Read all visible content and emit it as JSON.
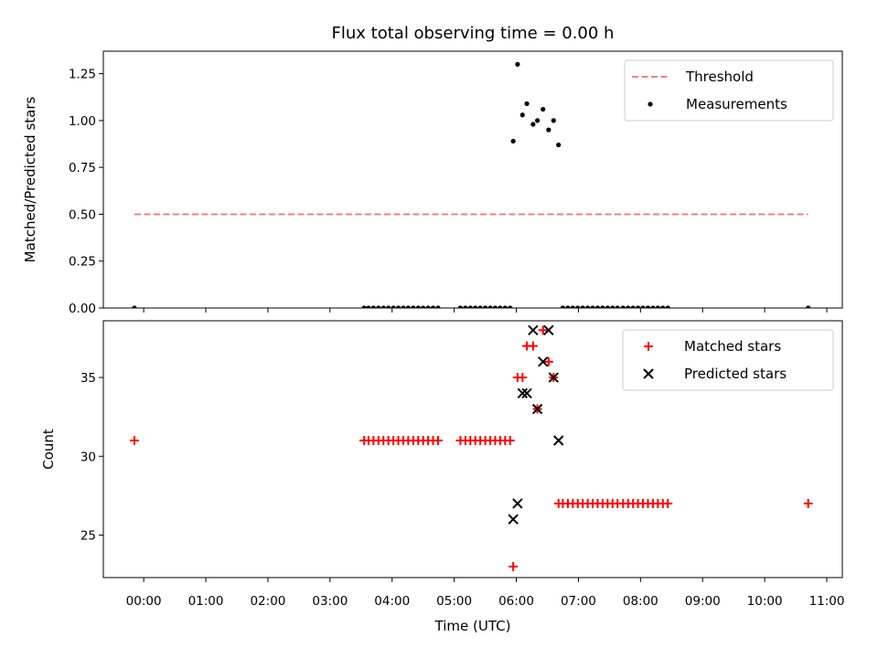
{
  "chart_data": {
    "type": "scatter",
    "title": "Flux total observing time = 0.00 h",
    "xlabel": "Time (UTC)",
    "x_unit": "hours UTC",
    "xlim": [
      -0.65,
      11.25
    ],
    "xticks": [
      0,
      1,
      2,
      3,
      4,
      5,
      6,
      7,
      8,
      9,
      10,
      11
    ],
    "xtick_labels": [
      "00:00",
      "01:00",
      "02:00",
      "03:00",
      "04:00",
      "05:00",
      "06:00",
      "07:00",
      "08:00",
      "09:00",
      "10:00",
      "11:00"
    ],
    "grid": false,
    "panels": [
      {
        "ylabel": "Matched/Predicted stars",
        "ylim": [
          0,
          1.37
        ],
        "yticks": [
          0.0,
          0.25,
          0.5,
          0.75,
          1.0,
          1.25
        ],
        "ytick_labels": [
          "0.00",
          "0.25",
          "0.50",
          "0.75",
          "1.00",
          "1.25"
        ],
        "legend_position": "upper right",
        "series": [
          {
            "name": "Threshold",
            "kind": "line",
            "style": "dashed",
            "color": "#f08080",
            "x": [
              -0.15,
              10.7
            ],
            "y": [
              0.5,
              0.5
            ]
          },
          {
            "name": "Measurements",
            "kind": "scatter",
            "marker": "dot",
            "color": "#000000",
            "x": [
              -0.15,
              3.55,
              3.62,
              3.7,
              3.78,
              3.86,
              3.94,
              4.02,
              4.1,
              4.18,
              4.26,
              4.34,
              4.42,
              4.5,
              4.58,
              4.66,
              4.74,
              5.1,
              5.18,
              5.26,
              5.34,
              5.42,
              5.5,
              5.58,
              5.66,
              5.74,
              5.82,
              5.9,
              5.95,
              6.02,
              6.1,
              6.17,
              6.27,
              6.34,
              6.43,
              6.52,
              6.6,
              6.68,
              6.75,
              6.83,
              6.91,
              6.99,
              7.07,
              7.15,
              7.23,
              7.31,
              7.39,
              7.47,
              7.55,
              7.63,
              7.72,
              7.8,
              7.88,
              7.96,
              8.04,
              8.12,
              8.2,
              8.28,
              8.36,
              8.44,
              10.7
            ],
            "y": [
              0,
              0,
              0,
              0,
              0,
              0,
              0,
              0,
              0,
              0,
              0,
              0,
              0,
              0,
              0,
              0,
              0,
              0,
              0,
              0,
              0,
              0,
              0,
              0,
              0,
              0,
              0,
              0,
              0.89,
              1.3,
              1.03,
              1.09,
              0.98,
              1.0,
              1.06,
              0.95,
              1.0,
              0.87,
              0,
              0,
              0,
              0,
              0,
              0,
              0,
              0,
              0,
              0,
              0,
              0,
              0,
              0,
              0,
              0,
              0,
              0,
              0,
              0,
              0,
              0,
              0
            ]
          }
        ]
      },
      {
        "ylabel": "Count",
        "ylim": [
          22.3,
          38.6
        ],
        "yticks": [
          25,
          30,
          35
        ],
        "ytick_labels": [
          "25",
          "30",
          "35"
        ],
        "legend_position": "upper right",
        "series": [
          {
            "name": "Matched stars",
            "kind": "scatter",
            "marker": "plus",
            "color": "#ff0000",
            "x": [
              -0.15,
              3.55,
              3.62,
              3.7,
              3.78,
              3.86,
              3.94,
              4.02,
              4.1,
              4.18,
              4.26,
              4.34,
              4.42,
              4.5,
              4.58,
              4.66,
              4.74,
              5.1,
              5.18,
              5.26,
              5.34,
              5.42,
              5.5,
              5.58,
              5.66,
              5.74,
              5.82,
              5.9,
              5.95,
              6.02,
              6.1,
              6.17,
              6.27,
              6.34,
              6.43,
              6.52,
              6.6,
              6.68,
              6.75,
              6.83,
              6.91,
              6.99,
              7.07,
              7.15,
              7.23,
              7.31,
              7.39,
              7.47,
              7.55,
              7.63,
              7.72,
              7.8,
              7.88,
              7.96,
              8.04,
              8.12,
              8.2,
              8.28,
              8.36,
              8.44,
              10.7
            ],
            "y": [
              31,
              31,
              31,
              31,
              31,
              31,
              31,
              31,
              31,
              31,
              31,
              31,
              31,
              31,
              31,
              31,
              31,
              31,
              31,
              31,
              31,
              31,
              31,
              31,
              31,
              31,
              31,
              31,
              23,
              35,
              35,
              37,
              37,
              33,
              38,
              36,
              35,
              27,
              27,
              27,
              27,
              27,
              27,
              27,
              27,
              27,
              27,
              27,
              27,
              27,
              27,
              27,
              27,
              27,
              27,
              27,
              27,
              27,
              27,
              27,
              27
            ]
          },
          {
            "name": "Predicted stars",
            "kind": "scatter",
            "marker": "x",
            "color": "#000000",
            "x": [
              5.95,
              6.02,
              6.1,
              6.17,
              6.27,
              6.34,
              6.43,
              6.52,
              6.6,
              6.68
            ],
            "y": [
              26,
              27,
              34,
              34,
              38,
              33,
              36,
              38,
              35,
              31
            ]
          }
        ]
      }
    ]
  }
}
